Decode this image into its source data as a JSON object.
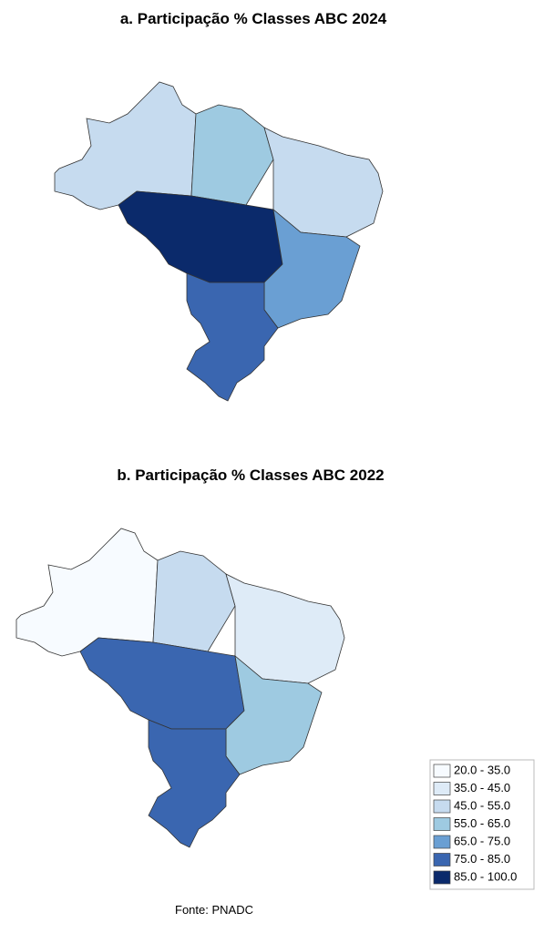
{
  "titles": [
    "a. Participação % Classes ABC  2024",
    "b. Participação % Classes ABC   2022"
  ],
  "legend": [
    {
      "label": "20.0 - 35.0",
      "color": "#f7fbff"
    },
    {
      "label": "35.0 - 45.0",
      "color": "#deebf7"
    },
    {
      "label": "45.0 - 55.0",
      "color": "#c6dbef"
    },
    {
      "label": "55.0 - 65.0",
      "color": "#9ecae1"
    },
    {
      "label": "65.0 - 75.0",
      "color": "#6a9fd3"
    },
    {
      "label": "75.0 - 85.0",
      "color": "#3a66b0"
    },
    {
      "label": "85.0 - 100.0",
      "color": "#0b2a6b"
    }
  ],
  "source": "Fonte: PNADC"
}
